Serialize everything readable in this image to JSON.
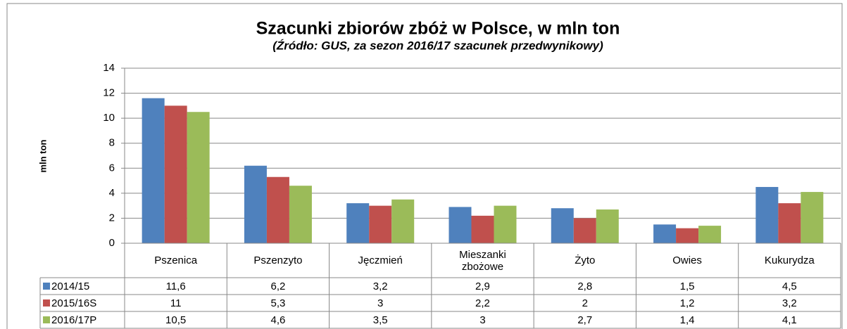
{
  "chart_data": {
    "type": "bar",
    "title": "Szacunki zbiorów zbóż w Polsce, w mln ton",
    "subtitle": "(Źródło: GUS, za sezon 2016/17 szacunek przedwynikowy)",
    "y_label": "mln ton",
    "categories": [
      "Pszenica",
      "Pszenzyto",
      "Jęczmień",
      "Mieszanki zbożowe",
      "Żyto",
      "Owies",
      "Kukurydza"
    ],
    "series": [
      {
        "name": "2014/15",
        "color": "#4f81bd",
        "values": [
          11.6,
          6.2,
          3.2,
          2.9,
          2.8,
          1.5,
          4.5
        ],
        "value_labels": [
          "11,6",
          "6,2",
          "3,2",
          "2,9",
          "2,8",
          "1,5",
          "4,5"
        ]
      },
      {
        "name": "2015/16S",
        "color": "#c0504d",
        "values": [
          11,
          5.3,
          3,
          2.2,
          2,
          1.2,
          3.2
        ],
        "value_labels": [
          "11",
          "5,3",
          "3",
          "2,2",
          "2",
          "1,2",
          "3,2"
        ]
      },
      {
        "name": "2016/17P",
        "color": "#9bbb59",
        "values": [
          10.5,
          4.6,
          3.5,
          3,
          2.7,
          1.4,
          4.1
        ],
        "value_labels": [
          "10,5",
          "4,6",
          "3,5",
          "3",
          "2,7",
          "1,4",
          "4,1"
        ]
      }
    ],
    "ylim": [
      0,
      14
    ],
    "yticks": [
      0,
      2,
      4,
      6,
      8,
      10,
      12,
      14
    ],
    "grid": true,
    "data_table": true
  }
}
